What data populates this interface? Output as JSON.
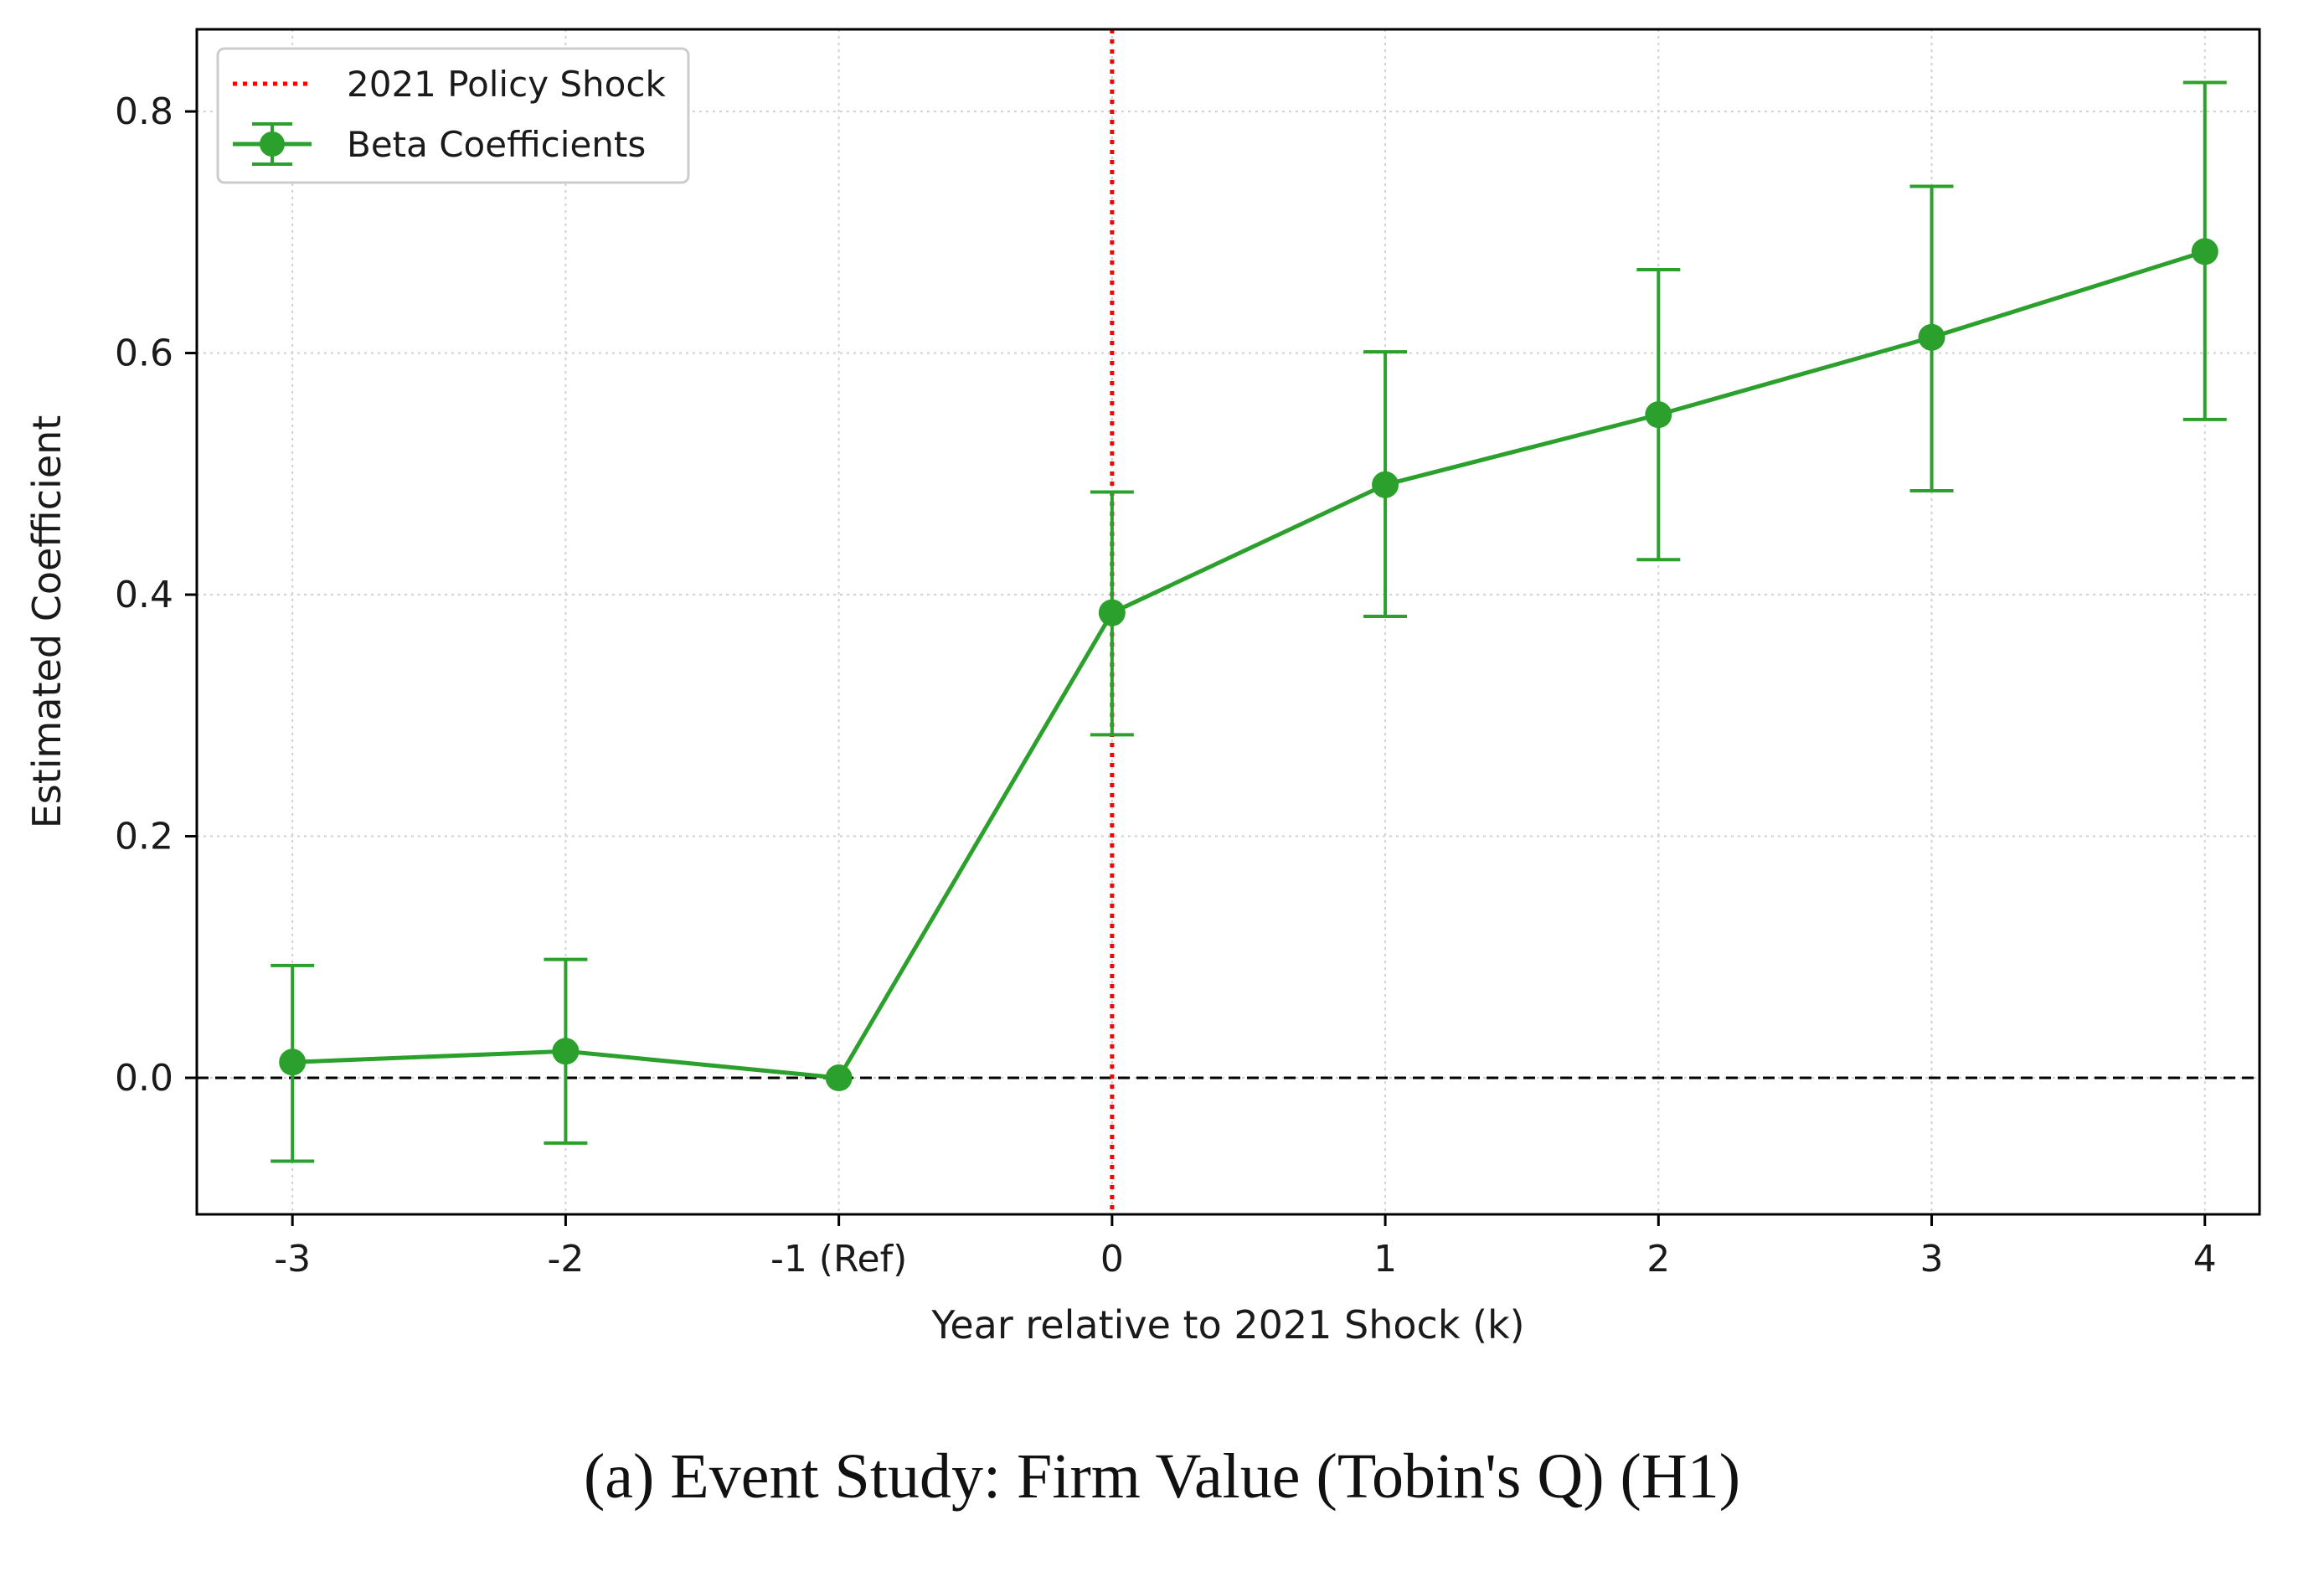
{
  "chart_data": {
    "type": "line",
    "title": "",
    "xlabel": "Year relative to 2021 Shock (k)",
    "ylabel": "Estimated Coefficient",
    "categories": [
      "-3",
      "-2",
      "-1 (Ref)",
      "0",
      "1",
      "2",
      "3",
      "4"
    ],
    "x": [
      -3,
      -2,
      -1,
      0,
      1,
      2,
      3,
      4
    ],
    "xlim": [
      -3.35,
      4.2
    ],
    "ylim": [
      -0.113,
      0.868
    ],
    "yticks": [
      "0.0",
      "0.2",
      "0.4",
      "0.6",
      "0.8"
    ],
    "ytick_values": [
      0.0,
      0.2,
      0.4,
      0.6,
      0.8
    ],
    "grid": true,
    "series": [
      {
        "name": "Beta Coefficients",
        "color": "#2ca02c",
        "values": [
          0.013,
          0.022,
          0.0,
          0.385,
          0.491,
          0.549,
          0.613,
          0.684
        ],
        "lower": [
          -0.069,
          -0.054,
          0.0,
          0.284,
          0.382,
          0.429,
          0.486,
          0.545
        ],
        "upper": [
          0.093,
          0.098,
          0.0,
          0.485,
          0.601,
          0.669,
          0.738,
          0.824
        ]
      }
    ],
    "reference_lines": [
      {
        "name": "2021 Policy Shock",
        "orientation": "vertical",
        "x": 0,
        "color": "#ff0000",
        "style": "dotted"
      },
      {
        "name": "zero",
        "orientation": "horizontal",
        "y": 0,
        "color": "#000000",
        "style": "dashed"
      }
    ],
    "legend": {
      "position": "top-left",
      "entries": [
        "2021 Policy Shock",
        "Beta Coefficients"
      ]
    }
  },
  "caption": "(a) Event Study: Firm Value (Tobin's Q) (H1)"
}
